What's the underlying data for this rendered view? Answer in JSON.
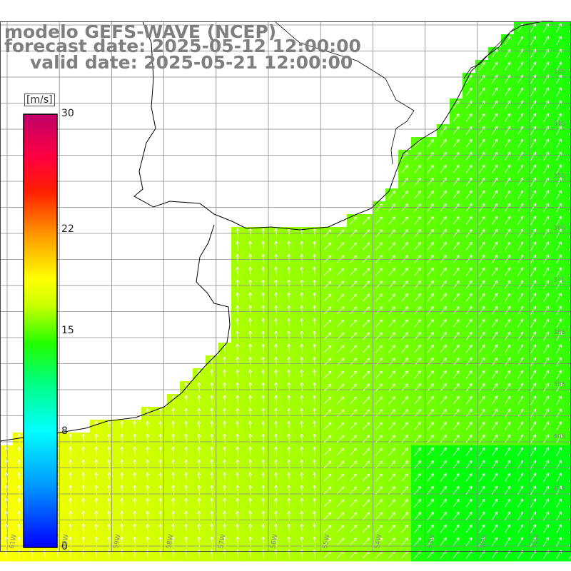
{
  "title": {
    "model": "modelo GEFS-WAVE (NCEP)",
    "forecast": "forecast date: 2025-05-12 12:00:00",
    "valid": "valid date: 2025-05-21 12:00:00"
  },
  "colorbar": {
    "unit": "[m/s]",
    "min": 0,
    "max": 30,
    "ticks": [
      "30",
      "22",
      "15",
      "8",
      "0"
    ],
    "tick_values": [
      30,
      22,
      15,
      8,
      0
    ],
    "colors": [
      "#0000ff",
      "#00c8ff",
      "#00ffff",
      "#00ff66",
      "#00ff00",
      "#9bff00",
      "#ffff00",
      "#ffb000",
      "#ff6000",
      "#ff0000",
      "#ff0060",
      "#c0006a"
    ]
  },
  "axes": {
    "longitude_labels": [
      "61W",
      "60W",
      "59W",
      "58W",
      "57W",
      "56W",
      "55W",
      "54W",
      "53W",
      "52W",
      "51W"
    ],
    "latitude_labels": [
      "33S",
      "34S",
      "35S",
      "36S",
      "37S",
      "38S",
      "39S",
      "40S",
      "41S"
    ]
  },
  "map_colors": {
    "land": "#ffffff",
    "grid": "#888888",
    "coast": "#000000",
    "arrow": "#ffffff"
  }
}
